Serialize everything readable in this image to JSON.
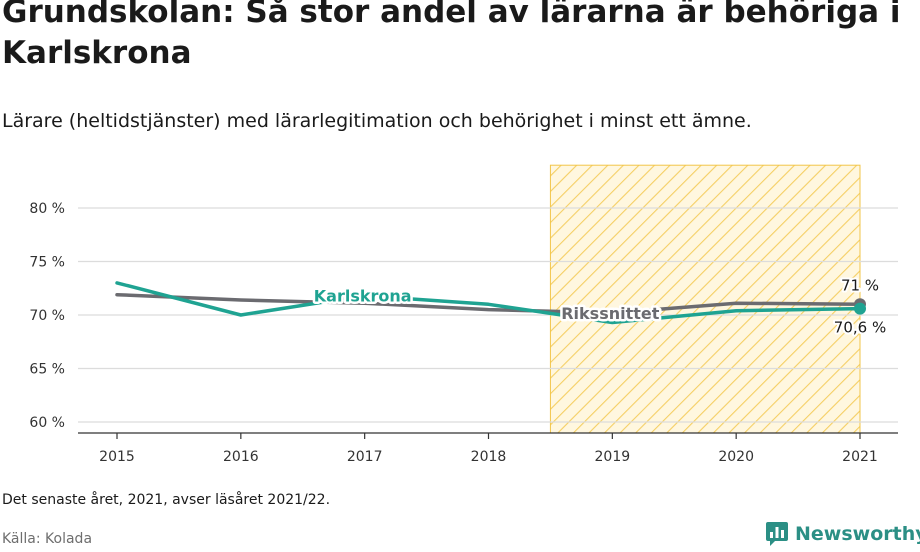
{
  "header": {
    "title": "Grundskolan: Så stor andel av lärarna är behöriga i Karlskrona",
    "subtitle": "Lärare (heltidstjänster) med lärarlegitimation och behörighet i minst ett ämne."
  },
  "footer": {
    "note": "Det senaste året, 2021, avser läsåret 2021/22.",
    "source": "Källa: Kolada",
    "brand": "Newsworthy"
  },
  "chart_data": {
    "type": "line",
    "x": [
      2015,
      2016,
      2017,
      2018,
      2019,
      2020,
      2021
    ],
    "x_tick_labels": [
      "2015",
      "2016",
      "2017",
      "2018",
      "2019",
      "2020",
      "2021"
    ],
    "ylim": [
      58.5,
      84
    ],
    "y_ticks": [
      60,
      65,
      70,
      75,
      80
    ],
    "y_tick_labels": [
      "60 %",
      "65 %",
      "70 %",
      "75 %",
      "80 %"
    ],
    "grid": true,
    "highlight_range": [
      2018.5,
      2021
    ],
    "series": [
      {
        "name": "Rikssnittet",
        "color": "#6b6b70",
        "values": [
          71.9,
          71.4,
          71.1,
          70.5,
          70.2,
          71.1,
          71.0
        ],
        "end_label": "71 %"
      },
      {
        "name": "Karlskrona",
        "color": "#1fa392",
        "values": [
          73.0,
          70.0,
          71.8,
          71.0,
          69.3,
          70.4,
          70.6
        ],
        "end_label": "70,6 %"
      }
    ]
  }
}
